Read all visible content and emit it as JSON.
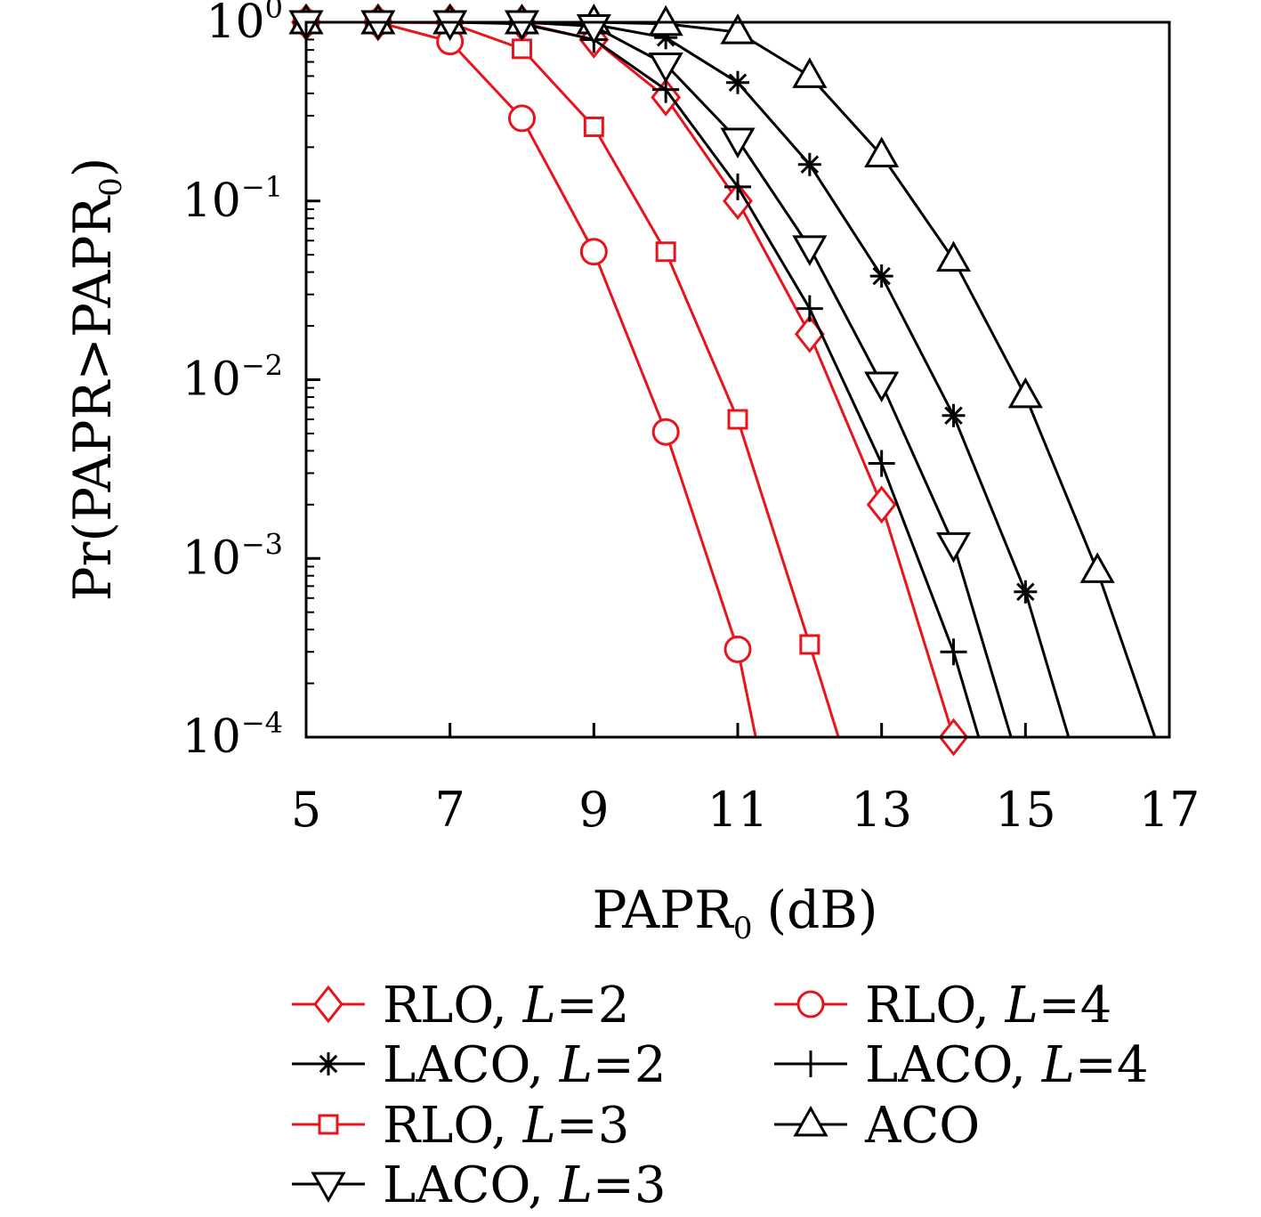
{
  "chart_data": {
    "type": "line",
    "title": "",
    "xlabel": "PAPR",
    "xlabel_sub": "0",
    "xlabel_unit": "(dB)",
    "ylabel": {
      "pre": "Pr(PAPR>PAPR",
      "sub": "0",
      "post": ")"
    },
    "xlim": [
      5,
      17
    ],
    "ylim": [
      0.0001,
      1
    ],
    "yscale": "log",
    "xticks": [
      5,
      7,
      9,
      11,
      13,
      15,
      17
    ],
    "yticks": [
      {
        "value": 1,
        "base": "10",
        "exp": "0"
      },
      {
        "value": 0.1,
        "base": "10",
        "exp": "−1"
      },
      {
        "value": 0.01,
        "base": "10",
        "exp": "−2"
      },
      {
        "value": 0.001,
        "base": "10",
        "exp": "−3"
      },
      {
        "value": 0.0001,
        "base": "10",
        "exp": "−4"
      }
    ],
    "grid": false,
    "legend_position": "bottom",
    "series": [
      {
        "id": "rlo2",
        "name": "RLO, ",
        "lname": "L",
        "lvalue": "=2",
        "color": "#e8141c",
        "marker": "diamond",
        "points": [
          [
            5,
            1
          ],
          [
            6,
            1
          ],
          [
            7,
            1
          ],
          [
            8,
            0.99
          ],
          [
            9,
            0.8
          ],
          [
            10,
            0.38
          ],
          [
            11,
            0.1
          ],
          [
            12,
            0.018
          ],
          [
            13,
            0.002
          ],
          [
            14,
            0.0001
          ]
        ]
      },
      {
        "id": "rlo4",
        "name": "RLO, ",
        "lname": "L",
        "lvalue": "=4",
        "color": "#e8141c",
        "marker": "circle",
        "points": [
          [
            5,
            1
          ],
          [
            6,
            1
          ],
          [
            7,
            0.78
          ],
          [
            8,
            0.29
          ],
          [
            9,
            0.052
          ],
          [
            10,
            0.0051
          ],
          [
            11,
            0.00031
          ]
        ],
        "tail": [
          11.25,
          0.0001
        ]
      },
      {
        "id": "laco2",
        "name": "LACO, ",
        "lname": "L",
        "lvalue": "=2",
        "color": "#000000",
        "marker": "asterisk",
        "points": [
          [
            5,
            1
          ],
          [
            6,
            1
          ],
          [
            7,
            1
          ],
          [
            8,
            1
          ],
          [
            9,
            0.97
          ],
          [
            10,
            0.82
          ],
          [
            11,
            0.46
          ],
          [
            12,
            0.16
          ],
          [
            13,
            0.038
          ],
          [
            14,
            0.0063
          ],
          [
            15,
            0.00065
          ]
        ],
        "tail": [
          15.6,
          0.0001
        ]
      },
      {
        "id": "laco4",
        "name": "LACO, ",
        "lname": "L",
        "lvalue": "=4",
        "color": "#000000",
        "marker": "plus",
        "points": [
          [
            5,
            1
          ],
          [
            6,
            1
          ],
          [
            7,
            1
          ],
          [
            8,
            0.98
          ],
          [
            9,
            0.8
          ],
          [
            10,
            0.42
          ],
          [
            11,
            0.12
          ],
          [
            12,
            0.025
          ],
          [
            13,
            0.0034
          ],
          [
            14,
            0.0003
          ]
        ],
        "tail": [
          14.35,
          0.0001
        ]
      },
      {
        "id": "rlo3",
        "name": "RLO, ",
        "lname": "L",
        "lvalue": "=3",
        "color": "#e8141c",
        "marker": "square",
        "points": [
          [
            5,
            1
          ],
          [
            6,
            1
          ],
          [
            7,
            0.99
          ],
          [
            8,
            0.71
          ],
          [
            9,
            0.26
          ],
          [
            10,
            0.052
          ],
          [
            11,
            0.006
          ],
          [
            12,
            0.00033
          ]
        ],
        "tail": [
          12.4,
          0.0001
        ]
      },
      {
        "id": "aco",
        "name": "ACO",
        "lname": "",
        "lvalue": "",
        "color": "#000000",
        "marker": "triangle-up",
        "points": [
          [
            5,
            1
          ],
          [
            6,
            1
          ],
          [
            7,
            1
          ],
          [
            8,
            1
          ],
          [
            9,
            1
          ],
          [
            10,
            0.98
          ],
          [
            11,
            0.88
          ],
          [
            12,
            0.5
          ],
          [
            13,
            0.18
          ],
          [
            14,
            0.047
          ],
          [
            15,
            0.0081
          ],
          [
            16,
            0.00085
          ]
        ],
        "tail": [
          16.8,
          0.0001
        ]
      },
      {
        "id": "laco3",
        "name": "LACO, ",
        "lname": "L",
        "lvalue": "=3",
        "color": "#000000",
        "marker": "triangle-down",
        "points": [
          [
            5,
            1
          ],
          [
            6,
            1
          ],
          [
            7,
            1
          ],
          [
            8,
            1
          ],
          [
            9,
            0.95
          ],
          [
            10,
            0.58
          ],
          [
            11,
            0.22
          ],
          [
            12,
            0.055
          ],
          [
            13,
            0.0095
          ],
          [
            14,
            0.0012
          ]
        ],
        "tail": [
          14.8,
          0.0001
        ]
      }
    ]
  }
}
